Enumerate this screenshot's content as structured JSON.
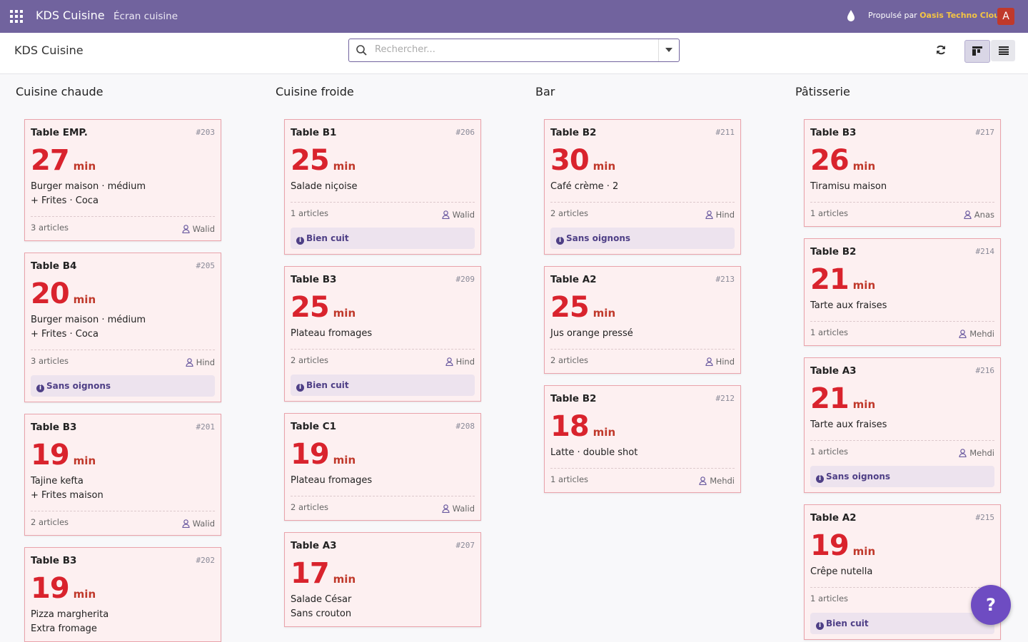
{
  "navbar": {
    "app_name": "KDS Cuisine",
    "menu": "Écran cuisine",
    "powered_by": "Propulsé par",
    "brand": "Oasis Techno Cloud",
    "avatar": "A"
  },
  "control_panel": {
    "breadcrumb": "KDS Cuisine",
    "search_placeholder": "Rechercher..."
  },
  "units": "min",
  "help": "?",
  "columns": [
    {
      "title": "Cuisine chaude",
      "cards": [
        {
          "table": "Table EMP.",
          "number": "#203",
          "minutes": 27,
          "lines": [
            "Burger maison · médium",
            "+ Frites · Coca"
          ],
          "articles": "3 articles",
          "cook": "Walid"
        },
        {
          "table": "Table B4",
          "number": "#205",
          "minutes": 20,
          "lines": [
            "Burger maison · médium",
            "+ Frites · Coca"
          ],
          "articles": "3 articles",
          "cook": "Hind",
          "note": "Sans oignons"
        },
        {
          "table": "Table B3",
          "number": "#201",
          "minutes": 19,
          "lines": [
            "Tajine kefta",
            "+ Frites maison"
          ],
          "articles": "2 articles",
          "cook": "Walid"
        },
        {
          "table": "Table B3",
          "number": "#202",
          "minutes": 19,
          "lines": [
            "Pizza margherita",
            "Extra fromage"
          ]
        }
      ]
    },
    {
      "title": "Cuisine froide",
      "cards": [
        {
          "table": "Table B1",
          "number": "#206",
          "minutes": 25,
          "lines": [
            "Salade niçoise"
          ],
          "articles": "1 articles",
          "cook": "Walid",
          "note": "Bien cuit"
        },
        {
          "table": "Table B3",
          "number": "#209",
          "minutes": 25,
          "lines": [
            "Plateau fromages"
          ],
          "articles": "2 articles",
          "cook": "Hind",
          "note": "Bien cuit"
        },
        {
          "table": "Table C1",
          "number": "#208",
          "minutes": 19,
          "lines": [
            "Plateau fromages"
          ],
          "articles": "2 articles",
          "cook": "Walid"
        },
        {
          "table": "Table A3",
          "number": "#207",
          "minutes": 17,
          "lines": [
            "Salade César",
            "Sans crouton"
          ]
        }
      ]
    },
    {
      "title": "Bar",
      "cards": [
        {
          "table": "Table B2",
          "number": "#211",
          "minutes": 30,
          "lines": [
            "Café crème · 2"
          ],
          "articles": "2 articles",
          "cook": "Hind",
          "note": "Sans oignons"
        },
        {
          "table": "Table A2",
          "number": "#213",
          "minutes": 25,
          "lines": [
            "Jus orange pressé"
          ],
          "articles": "2 articles",
          "cook": "Hind"
        },
        {
          "table": "Table B2",
          "number": "#212",
          "minutes": 18,
          "lines": [
            "Latte · double shot"
          ],
          "articles": "1 articles",
          "cook": "Mehdi"
        }
      ]
    },
    {
      "title": "Pâtisserie",
      "cards": [
        {
          "table": "Table B3",
          "number": "#217",
          "minutes": 26,
          "lines": [
            "Tiramisu maison"
          ],
          "articles": "1 articles",
          "cook": "Anas"
        },
        {
          "table": "Table B2",
          "number": "#214",
          "minutes": 21,
          "lines": [
            "Tarte aux fraises"
          ],
          "articles": "1 articles",
          "cook": "Mehdi"
        },
        {
          "table": "Table A3",
          "number": "#216",
          "minutes": 21,
          "lines": [
            "Tarte aux fraises"
          ],
          "articles": "1 articles",
          "cook": "Mehdi",
          "note": "Sans oignons"
        },
        {
          "table": "Table A2",
          "number": "#215",
          "minutes": 19,
          "lines": [
            "Crêpe nutella"
          ],
          "articles": "1 articles",
          "note": "Bien cuit"
        }
      ]
    }
  ]
}
